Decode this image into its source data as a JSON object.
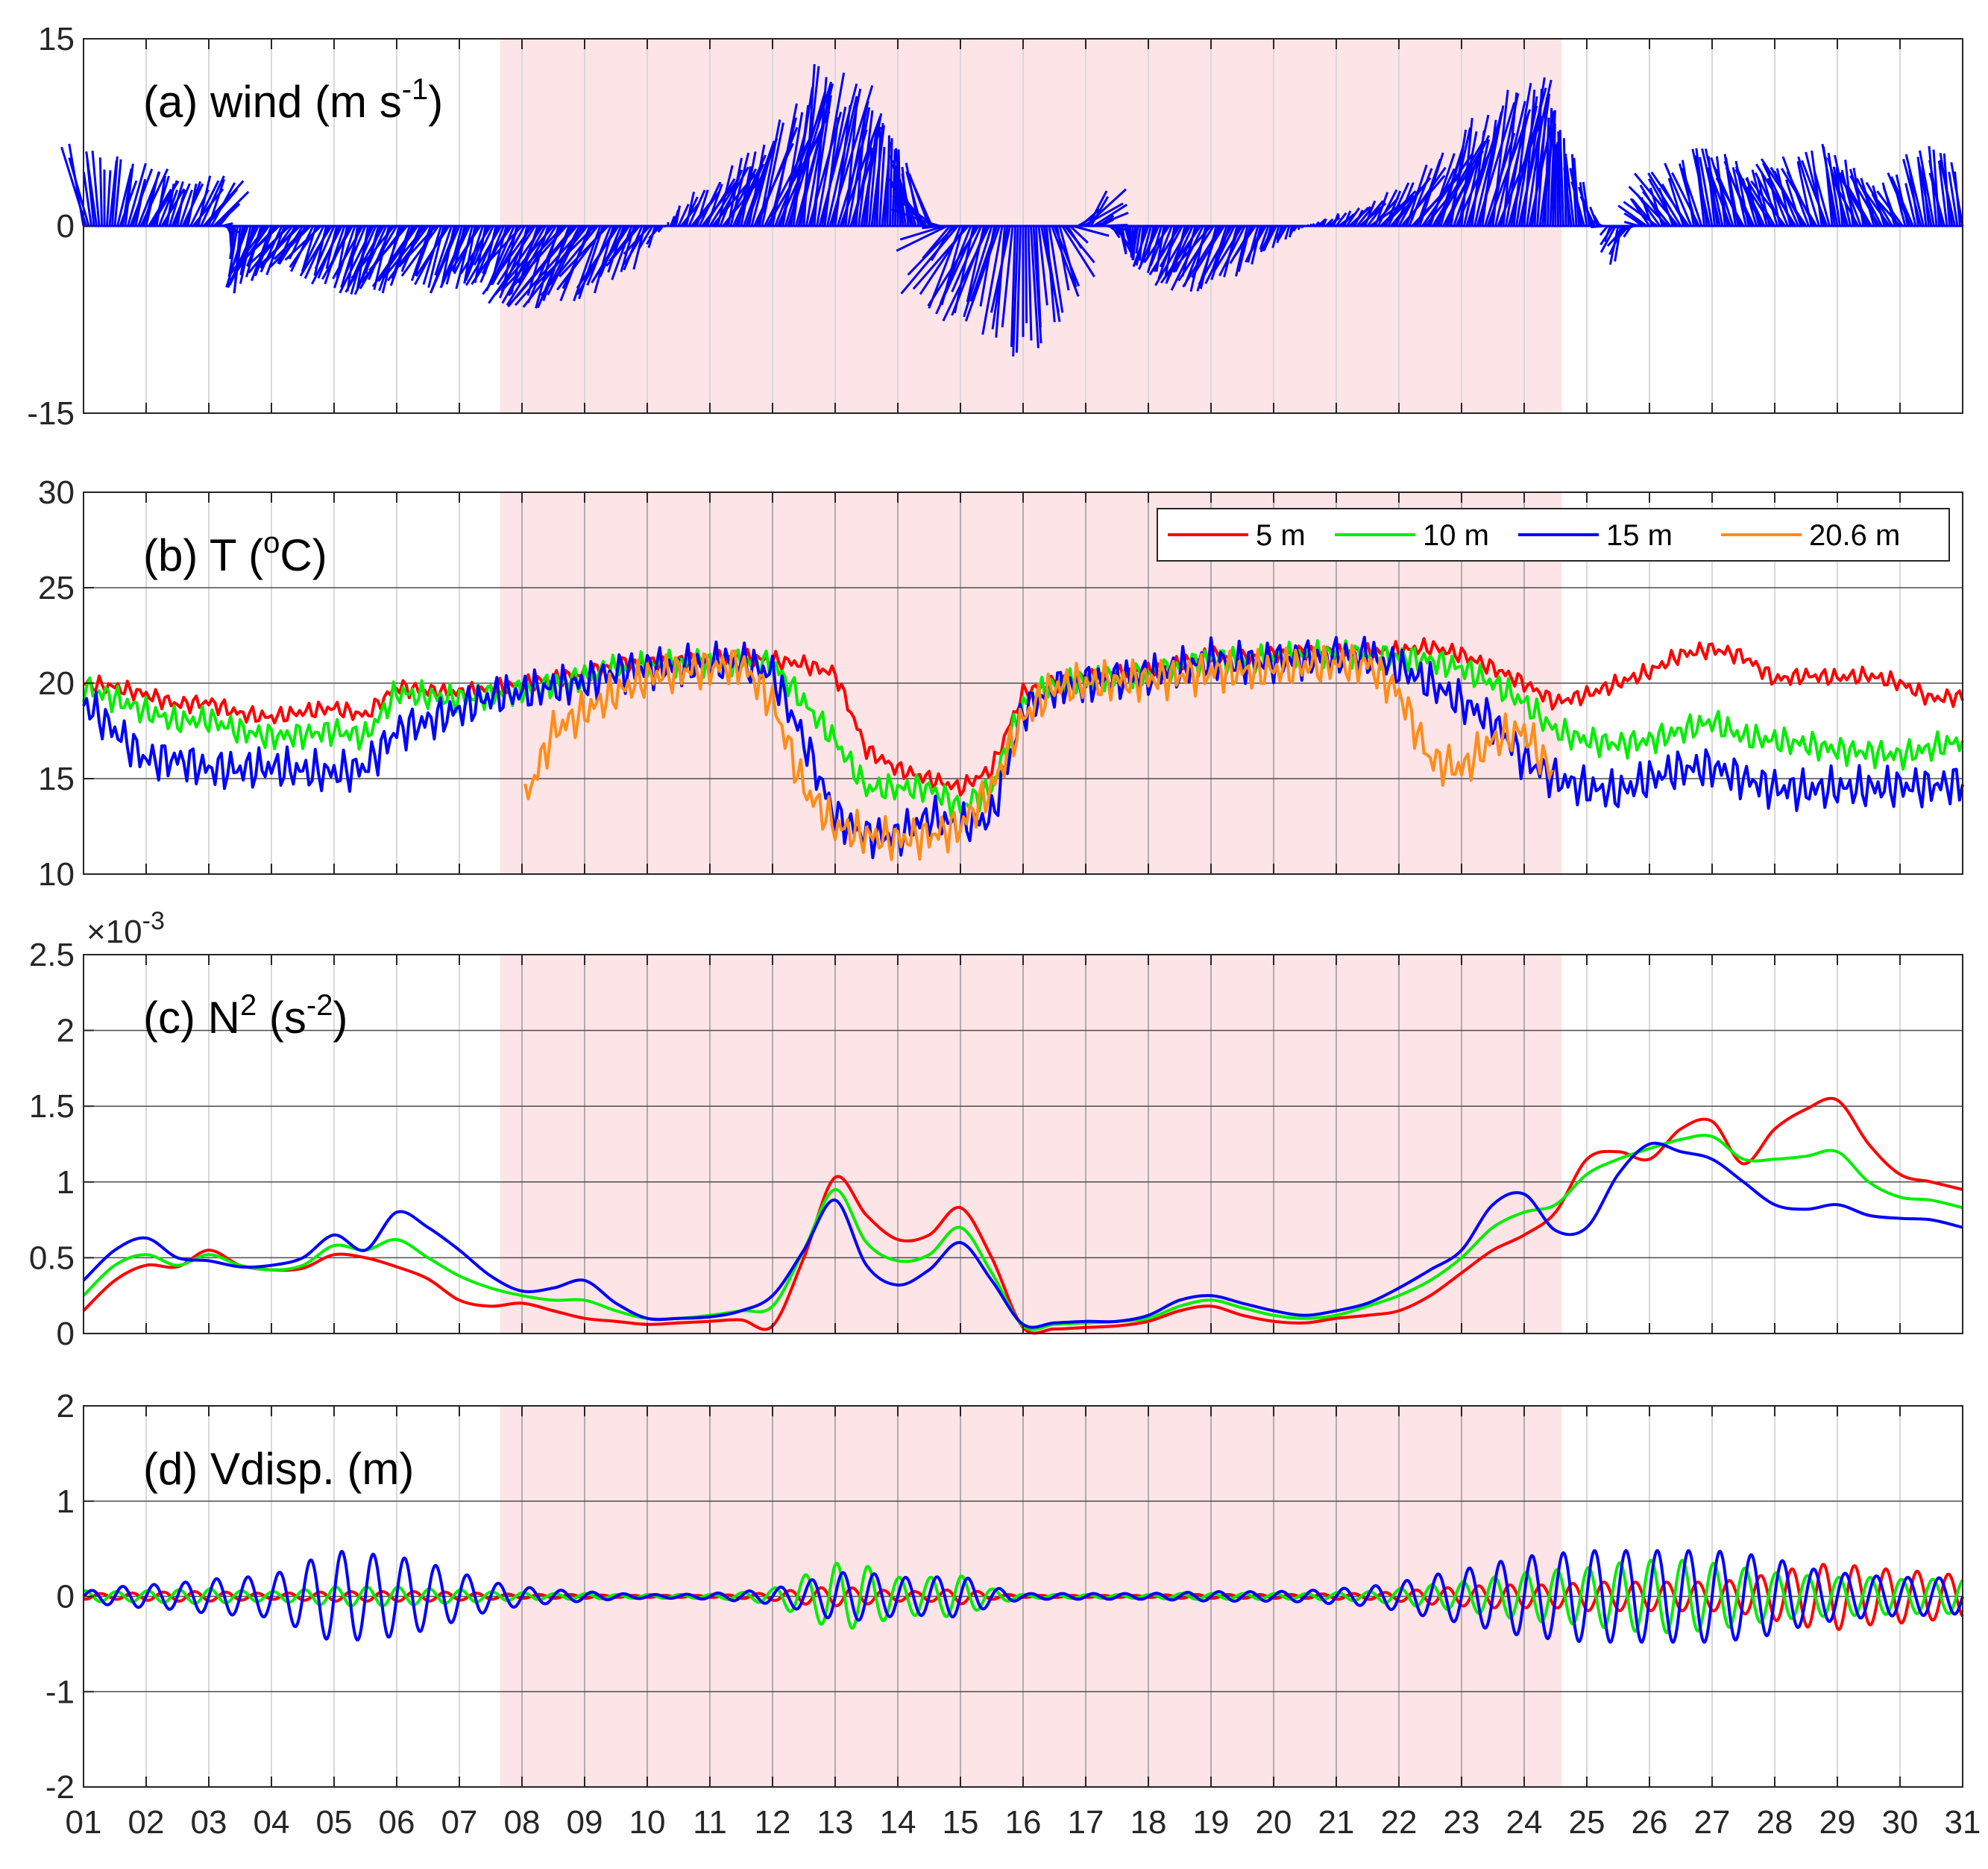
{
  "chart_data": [
    {
      "type": "line",
      "variant": "stick-vector",
      "title": "(a) wind (m s",
      "title_sup": "-1",
      "title_end": ")",
      "ylim": [
        -15,
        15
      ],
      "yticks": [
        "15",
        "0",
        "-15"
      ],
      "grid": true,
      "shaded_days": [
        7.65,
        24.6
      ],
      "color": "#0000ff",
      "series": [
        {
          "day": [
            1.0,
            1.5,
            2.0,
            2.5,
            3.0,
            3.5,
            4.0,
            4.5,
            5.0,
            5.5,
            6.0,
            6.5,
            7.0,
            7.5,
            8.0,
            8.5,
            9.0,
            9.5,
            10.0,
            10.5,
            11.0,
            11.5,
            12.0,
            12.5,
            13.0,
            13.5,
            14.0,
            14.5,
            15.0,
            15.5,
            16.0,
            16.5,
            17.0,
            17.5,
            18.0,
            18.5,
            19.0,
            19.5,
            20.0,
            20.5,
            21.0,
            21.5,
            22.0,
            22.5,
            23.0,
            23.5,
            24.0,
            24.5,
            25.0,
            25.5,
            26.0,
            26.5,
            27.0,
            27.5,
            28.0,
            28.5,
            29.0,
            29.5,
            30.0,
            30.5,
            31.0
          ],
          "u": [
            -2,
            1,
            2,
            1,
            3,
            -1,
            -3,
            -3,
            -2,
            -2,
            -3,
            -3,
            -2,
            -2,
            -3,
            -4,
            -5,
            -3,
            -2,
            1,
            3,
            2,
            4,
            2,
            3,
            1,
            0,
            -3,
            -4,
            -3,
            0,
            2,
            3,
            1,
            -1,
            -2,
            -3,
            -2,
            -1,
            0,
            1,
            2,
            3,
            4,
            2,
            3,
            2,
            0,
            -1,
            -1,
            -2,
            -3,
            -1,
            -2,
            -2,
            -3,
            -1,
            -2,
            -2,
            -1,
            -1
          ],
          "v": [
            6,
            5,
            4,
            3,
            4,
            -5,
            -4,
            -3,
            -4,
            -5,
            -5,
            -4,
            -5,
            -4,
            -5,
            -6,
            -6,
            -5,
            -3,
            2,
            4,
            6,
            9,
            12,
            10,
            8,
            6,
            4,
            -6,
            -7,
            -10,
            -6,
            3,
            -2,
            -3,
            -4,
            -5,
            -4,
            -2,
            0,
            1,
            2,
            4,
            6,
            8,
            10,
            11,
            8,
            4,
            -3,
            2,
            4,
            6,
            5,
            4,
            5,
            6,
            4,
            3,
            6,
            5
          ]
        }
      ]
    },
    {
      "type": "line",
      "title": "(b) T (",
      "title_sup": "o",
      "title_end": "C)",
      "ylim": [
        10,
        30
      ],
      "yticks": [
        "30",
        "25",
        "20",
        "15",
        "10"
      ],
      "grid": true,
      "legend_placement": "top-right",
      "x": [
        1.0,
        1.5,
        2.0,
        2.5,
        3.0,
        3.5,
        4.0,
        4.5,
        5.0,
        5.5,
        6.0,
        6.5,
        7.0,
        7.5,
        8.0,
        8.5,
        9.0,
        9.5,
        10.0,
        10.5,
        11.0,
        11.5,
        12.0,
        12.5,
        13.0,
        13.5,
        14.0,
        14.5,
        15.0,
        15.5,
        16.0,
        16.5,
        17.0,
        17.5,
        18.0,
        18.5,
        19.0,
        19.5,
        20.0,
        20.5,
        21.0,
        21.5,
        22.0,
        22.5,
        23.0,
        23.5,
        24.0,
        24.5,
        25.0,
        25.5,
        26.0,
        26.5,
        27.0,
        27.5,
        28.0,
        28.5,
        29.0,
        29.5,
        30.0,
        30.5,
        31.0
      ],
      "series": [
        {
          "name": "5 m",
          "color": "#ff0000",
          "values": [
            20,
            19.8,
            19.4,
            18.9,
            19.0,
            18.4,
            18.2,
            18.5,
            18.7,
            18.3,
            19.8,
            19.6,
            19.5,
            19.7,
            19.9,
            20.2,
            20.5,
            21.0,
            21.0,
            21.1,
            21.2,
            21.3,
            21.2,
            21.0,
            20.5,
            16.5,
            15.5,
            15.0,
            14.5,
            15.5,
            19.5,
            20.0,
            20.3,
            20.5,
            20.6,
            21.0,
            21.5,
            21.3,
            21.5,
            21.6,
            21.6,
            21.6,
            21.7,
            21.9,
            21.5,
            20.8,
            20.0,
            19.0,
            19.4,
            20.0,
            20.6,
            21.5,
            21.8,
            21.4,
            20.2,
            20.4,
            20.3,
            20.4,
            20.0,
            19.2,
            19.3
          ]
        },
        {
          "name": "10 m",
          "color": "#00ee00",
          "values": [
            19.8,
            19.2,
            18.5,
            18.0,
            18.1,
            17.5,
            17.2,
            17.3,
            17.5,
            17.2,
            19.5,
            19.3,
            19.2,
            19.4,
            19.6,
            19.9,
            20.3,
            20.8,
            20.9,
            21.0,
            21.1,
            21.2,
            21.0,
            19.0,
            17.0,
            14.5,
            14.5,
            14.5,
            13.5,
            14.5,
            19.0,
            19.9,
            20.1,
            20.3,
            20.5,
            20.8,
            21.3,
            21.2,
            21.3,
            21.4,
            21.5,
            21.5,
            21.4,
            21.2,
            20.8,
            20.0,
            19.0,
            17.5,
            17.0,
            16.8,
            17.0,
            17.5,
            18.0,
            17.2,
            17.0,
            16.8,
            16.5,
            16.4,
            16.2,
            16.6,
            17.0
          ]
        },
        {
          "name": "15 m",
          "color": "#0000ff",
          "values": [
            19.0,
            17.5,
            16.0,
            16.0,
            15.5,
            15.5,
            15.6,
            15.4,
            15.3,
            15.6,
            17.5,
            18.0,
            18.6,
            19.3,
            19.5,
            19.8,
            20.0,
            20.6,
            20.8,
            20.9,
            21.0,
            21.1,
            20.5,
            17.0,
            13.0,
            12.0,
            12.0,
            13.0,
            12.5,
            13.0,
            18.5,
            19.8,
            20.0,
            20.2,
            20.4,
            20.7,
            21.2,
            21.1,
            21.2,
            21.3,
            21.4,
            21.4,
            20.8,
            20.0,
            19.0,
            18.0,
            16.0,
            15.0,
            14.5,
            14.3,
            15.0,
            15.5,
            15.6,
            15.0,
            14.5,
            14.4,
            14.5,
            14.5,
            14.6,
            14.6,
            14.8
          ]
        },
        {
          "name": "20.6 m",
          "color": "#ff8c1a",
          "values": [
            null,
            null,
            null,
            null,
            null,
            null,
            null,
            null,
            null,
            null,
            null,
            null,
            null,
            null,
            13.5,
            17.5,
            18.5,
            19.5,
            20.3,
            20.6,
            20.8,
            21.0,
            19.0,
            14.5,
            12.5,
            12.0,
            11.8,
            12.0,
            12.5,
            14.5,
            18.2,
            19.8,
            20.0,
            20.1,
            20.2,
            20.4,
            20.6,
            20.6,
            20.7,
            20.9,
            21.0,
            21.0,
            19.5,
            16.0,
            15.5,
            17.0,
            17.5,
            15.0,
            null,
            null,
            null,
            null,
            null,
            null,
            null,
            null,
            null,
            null,
            null,
            null,
            null
          ]
        }
      ]
    },
    {
      "type": "line",
      "title": "(c) N",
      "title_sup": "2",
      "title_mid": " (s",
      "title_sup2": "-2",
      "title_end": ")",
      "exponent_label": "×10",
      "exponent_sup": "-3",
      "ylim": [
        0,
        2.5
      ],
      "yticks": [
        "2.5",
        "2",
        "1.5",
        "1",
        "0.5",
        "0"
      ],
      "grid": true,
      "x": [
        1.0,
        1.5,
        2.0,
        2.5,
        3.0,
        3.5,
        4.0,
        4.5,
        5.0,
        5.5,
        6.0,
        6.5,
        7.0,
        7.5,
        8.0,
        8.5,
        9.0,
        9.5,
        10.0,
        10.5,
        11.0,
        11.5,
        12.0,
        12.5,
        13.0,
        13.5,
        14.0,
        14.5,
        15.0,
        15.5,
        16.0,
        16.5,
        17.0,
        17.5,
        18.0,
        18.5,
        19.0,
        19.5,
        20.0,
        20.5,
        21.0,
        21.5,
        22.0,
        22.5,
        23.0,
        23.5,
        24.0,
        24.5,
        25.0,
        25.5,
        26.0,
        26.5,
        27.0,
        27.5,
        28.0,
        28.5,
        29.0,
        29.5,
        30.0,
        30.5,
        31.0
      ],
      "series": [
        {
          "name": "5 m",
          "color": "#ff0000",
          "values": [
            0.15,
            0.35,
            0.45,
            0.44,
            0.55,
            0.45,
            0.42,
            0.43,
            0.52,
            0.5,
            0.44,
            0.36,
            0.22,
            0.18,
            0.2,
            0.15,
            0.1,
            0.08,
            0.06,
            0.07,
            0.08,
            0.09,
            0.05,
            0.5,
            1.03,
            0.78,
            0.62,
            0.65,
            0.83,
            0.5,
            0.04,
            0.03,
            0.04,
            0.05,
            0.08,
            0.15,
            0.18,
            0.12,
            0.08,
            0.07,
            0.1,
            0.12,
            0.15,
            0.25,
            0.4,
            0.55,
            0.65,
            0.8,
            1.15,
            1.2,
            1.15,
            1.35,
            1.4,
            1.12,
            1.35,
            1.48,
            1.54,
            1.25,
            1.05,
            1.0,
            0.95
          ]
        },
        {
          "name": "10 m",
          "color": "#00ee00",
          "values": [
            0.25,
            0.45,
            0.52,
            0.45,
            0.52,
            0.45,
            0.42,
            0.45,
            0.58,
            0.55,
            0.62,
            0.5,
            0.38,
            0.3,
            0.25,
            0.22,
            0.22,
            0.15,
            0.1,
            0.1,
            0.12,
            0.15,
            0.18,
            0.55,
            0.95,
            0.6,
            0.48,
            0.52,
            0.7,
            0.4,
            0.05,
            0.06,
            0.07,
            0.08,
            0.1,
            0.18,
            0.22,
            0.17,
            0.12,
            0.1,
            0.12,
            0.18,
            0.25,
            0.35,
            0.5,
            0.7,
            0.8,
            0.85,
            1.05,
            1.15,
            1.22,
            1.28,
            1.3,
            1.15,
            1.15,
            1.17,
            1.2,
            1.0,
            0.9,
            0.88,
            0.83
          ]
        },
        {
          "name": "15 m",
          "color": "#0000ff",
          "values": [
            0.35,
            0.55,
            0.63,
            0.5,
            0.48,
            0.44,
            0.45,
            0.5,
            0.65,
            0.55,
            0.8,
            0.7,
            0.55,
            0.38,
            0.28,
            0.3,
            0.35,
            0.2,
            0.1,
            0.1,
            0.11,
            0.15,
            0.25,
            0.55,
            0.88,
            0.45,
            0.32,
            0.42,
            0.6,
            0.35,
            0.06,
            0.07,
            0.08,
            0.08,
            0.12,
            0.22,
            0.25,
            0.2,
            0.15,
            0.12,
            0.15,
            0.2,
            0.3,
            0.42,
            0.55,
            0.85,
            0.92,
            0.68,
            0.7,
            1.05,
            1.25,
            1.2,
            1.15,
            1.0,
            0.85,
            0.82,
            0.85,
            0.78,
            0.76,
            0.75,
            0.7
          ]
        }
      ]
    },
    {
      "type": "line",
      "title": "(d) Vdisp. (m)",
      "ylim": [
        -2,
        2
      ],
      "yticks": [
        "2",
        "1",
        "0",
        "-1",
        "-2"
      ],
      "grid": true,
      "x": [
        1.0,
        1.5,
        2.0,
        2.5,
        3.0,
        3.5,
        4.0,
        4.5,
        5.0,
        5.5,
        6.0,
        6.5,
        7.0,
        7.5,
        8.0,
        8.5,
        9.0,
        9.5,
        10.0,
        10.5,
        11.0,
        11.5,
        12.0,
        12.5,
        13.0,
        13.5,
        14.0,
        14.5,
        15.0,
        15.5,
        16.0,
        16.5,
        17.0,
        17.5,
        18.0,
        18.5,
        19.0,
        19.5,
        20.0,
        20.5,
        21.0,
        21.5,
        22.0,
        22.5,
        23.0,
        23.5,
        24.0,
        24.5,
        25.0,
        25.5,
        26.0,
        26.5,
        27.0,
        27.5,
        28.0,
        28.5,
        29.0,
        29.5,
        30.0,
        30.5,
        31.0
      ],
      "period_days": 0.5,
      "series": [
        {
          "name": "5 m",
          "color": "#ff0000",
          "values": [
            0.03,
            0.03,
            0.04,
            0.05,
            0.05,
            0.04,
            0.03,
            0.04,
            0.05,
            0.05,
            0.05,
            0.05,
            0.04,
            0.03,
            0.02,
            0.02,
            0.02,
            0.01,
            0.01,
            0.01,
            0.01,
            0.02,
            0.04,
            0.08,
            0.1,
            0.08,
            0.05,
            0.05,
            0.08,
            0.03,
            0.01,
            0.01,
            0.01,
            0.01,
            0.01,
            0.02,
            0.02,
            0.02,
            0.02,
            0.02,
            0.03,
            0.03,
            0.05,
            0.08,
            0.1,
            0.12,
            0.12,
            0.12,
            0.15,
            0.15,
            0.15,
            0.15,
            0.15,
            0.18,
            0.25,
            0.32,
            0.35,
            0.3,
            0.28,
            0.25,
            0.22
          ]
        },
        {
          "name": "10 m",
          "color": "#00ee00",
          "values": [
            0.06,
            0.05,
            0.06,
            0.07,
            0.08,
            0.06,
            0.05,
            0.07,
            0.1,
            0.1,
            0.1,
            0.08,
            0.07,
            0.05,
            0.04,
            0.03,
            0.03,
            0.02,
            0.02,
            0.02,
            0.02,
            0.04,
            0.08,
            0.22,
            0.35,
            0.32,
            0.2,
            0.2,
            0.22,
            0.08,
            0.02,
            0.02,
            0.02,
            0.02,
            0.02,
            0.03,
            0.03,
            0.03,
            0.03,
            0.03,
            0.04,
            0.05,
            0.08,
            0.12,
            0.15,
            0.2,
            0.25,
            0.28,
            0.3,
            0.35,
            0.38,
            0.38,
            0.35,
            0.3,
            0.25,
            0.22,
            0.2,
            0.2,
            0.18,
            0.18,
            0.18
          ]
        },
        {
          "name": "15 m",
          "color": "#0000ff",
          "values": [
            0.05,
            0.1,
            0.12,
            0.14,
            0.18,
            0.2,
            0.22,
            0.35,
            0.48,
            0.45,
            0.42,
            0.35,
            0.25,
            0.15,
            0.1,
            0.07,
            0.05,
            0.03,
            0.02,
            0.02,
            0.03,
            0.05,
            0.08,
            0.15,
            0.25,
            0.25,
            0.2,
            0.2,
            0.22,
            0.1,
            0.03,
            0.03,
            0.03,
            0.03,
            0.03,
            0.04,
            0.05,
            0.05,
            0.05,
            0.06,
            0.08,
            0.1,
            0.15,
            0.22,
            0.28,
            0.35,
            0.42,
            0.45,
            0.48,
            0.48,
            0.48,
            0.48,
            0.48,
            0.45,
            0.4,
            0.3,
            0.25,
            0.22,
            0.2,
            0.2,
            0.18
          ]
        }
      ]
    }
  ],
  "x_axis": {
    "tick_labels": [
      "01",
      "02",
      "03",
      "04",
      "05",
      "06",
      "07",
      "08",
      "09",
      "10",
      "11",
      "12",
      "13",
      "14",
      "15",
      "16",
      "17",
      "18",
      "19",
      "20",
      "21",
      "22",
      "23",
      "24",
      "25",
      "26",
      "27",
      "28",
      "29",
      "30",
      "31"
    ],
    "xlim": [
      1,
      31
    ]
  },
  "colors": {
    "shade": "#fde4e6",
    "grid": "#262626",
    "axis": "#262626"
  }
}
